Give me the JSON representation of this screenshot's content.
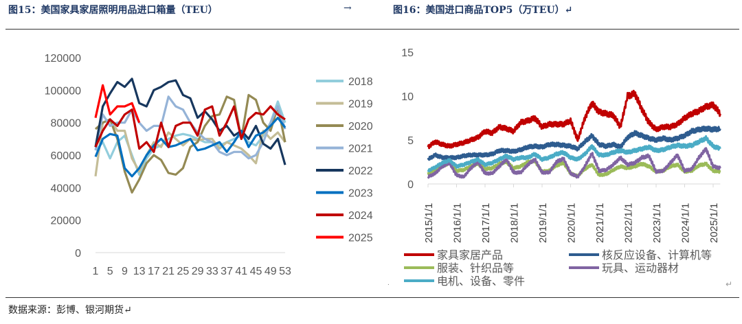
{
  "titles": {
    "left": "图15：美国家具家居照明用品进口箱量（TEU）",
    "arrow": "→",
    "right": "图16：美国进口商品TOP5（万TEU）↵"
  },
  "footer": "数据来源：彭博、银河期货↵",
  "marks": {
    "dot": ".",
    "return": "↵"
  },
  "chart_data": [
    {
      "type": "line",
      "title": "图15：美国家具家居照明用品进口箱量（TEU）",
      "xlabel": "",
      "ylabel": "",
      "ylim": [
        0,
        120000
      ],
      "yticks": [
        "0",
        "20000",
        "40000",
        "60000",
        "80000",
        "100000",
        "120000"
      ],
      "xticks": [
        "1",
        "5",
        "9",
        "13",
        "17",
        "21",
        "25",
        "29",
        "33",
        "37",
        "41",
        "45",
        "49",
        "53"
      ],
      "grid": false,
      "legend": "right",
      "x": [
        1,
        3,
        5,
        7,
        9,
        11,
        13,
        15,
        17,
        19,
        21,
        23,
        25,
        27,
        29,
        31,
        33,
        35,
        37,
        39,
        41,
        43,
        45,
        47,
        49,
        51,
        53
      ],
      "series": [
        {
          "name": "2018",
          "color": "#92cddc",
          "values": [
            63000,
            68000,
            58000,
            68000,
            72000,
            60000,
            48000,
            58000,
            64000,
            66000,
            70000,
            72000,
            73000,
            72000,
            70000,
            68000,
            68000,
            66000,
            68000,
            70000,
            72000,
            68000,
            66000,
            72000,
            80000,
            93000,
            80000
          ]
        },
        {
          "name": "2019",
          "color": "#c4bd97",
          "values": [
            47000,
            80000,
            82000,
            75000,
            75000,
            58000,
            50000,
            60000,
            68000,
            65000,
            74000,
            70000,
            66000,
            70000,
            69000,
            70000,
            70000,
            64000,
            68000,
            66000,
            64000,
            60000,
            55000,
            75000,
            70000,
            74000,
            68000
          ]
        },
        {
          "name": "2020",
          "color": "#948a54",
          "values": [
            76000,
            80000,
            82000,
            70000,
            50000,
            37000,
            45000,
            55000,
            60000,
            57000,
            49000,
            48000,
            52000,
            65000,
            68000,
            78000,
            84000,
            85000,
            96000,
            94000,
            70000,
            97000,
            94000,
            80000,
            75000,
            90000,
            68000
          ]
        },
        {
          "name": "2021",
          "color": "#95b3d7",
          "values": [
            63000,
            85000,
            78000,
            80000,
            80000,
            88000,
            80000,
            75000,
            78000,
            78000,
            96000,
            90000,
            88000,
            80000,
            74000,
            70000,
            68000,
            62000,
            60000,
            62000,
            62000,
            58000,
            60000,
            68000,
            80000,
            90000,
            76000
          ]
        },
        {
          "name": "2022",
          "color": "#17375e",
          "values": [
            65000,
            90000,
            98000,
            105000,
            102000,
            107000,
            92000,
            90000,
            100000,
            102000,
            105000,
            106000,
            97000,
            95000,
            83000,
            87000,
            82000,
            75000,
            78000,
            72000,
            75000,
            70000,
            78000,
            67000,
            64000,
            70000,
            54000
          ]
        },
        {
          "name": "2023",
          "color": "#0070c0",
          "values": [
            59000,
            70000,
            73000,
            72000,
            52000,
            47000,
            52000,
            60000,
            66000,
            70000,
            65000,
            66000,
            68000,
            70000,
            63000,
            64000,
            66000,
            68000,
            62000,
            68000,
            75000,
            65000,
            72000,
            74000,
            78000,
            83000,
            77000
          ]
        },
        {
          "name": "2024",
          "color": "#c00000",
          "values": [
            65000,
            75000,
            82000,
            78000,
            85000,
            88000,
            64000,
            68000,
            62000,
            80000,
            65000,
            78000,
            80000,
            80000,
            72000,
            88000,
            90000,
            72000,
            80000,
            90000,
            70000,
            82000,
            86000,
            85000,
            90000,
            85000,
            82000
          ]
        },
        {
          "name": "2025",
          "color": "#ff0000",
          "values": [
            83000,
            103000,
            85000,
            90000,
            90000,
            92000,
            80000,
            null,
            null,
            null,
            null,
            null,
            null,
            null,
            null,
            null,
            null,
            null,
            null,
            null,
            null,
            null,
            null,
            null,
            null,
            null,
            null
          ]
        }
      ]
    },
    {
      "type": "line",
      "title": "图16：美国进口商品TOP5（万TEU）",
      "xlabel": "",
      "ylabel": "",
      "ylim": [
        0,
        15
      ],
      "yticks": [
        "0",
        "5",
        "10",
        "15"
      ],
      "xticks": [
        "2015/1/1",
        "2016/1/1",
        "2017/1/1",
        "2018/1/1",
        "2019/1/1",
        "2020/1/1",
        "2021/1/1",
        "2022/1/1",
        "2023/1/1",
        "2024/1/1",
        "2025/1/1"
      ],
      "xrange": [
        "2015/1/1",
        "2025/4/1"
      ],
      "grid": false,
      "legend": "bottom",
      "x": [
        "2015/1",
        "2015/4",
        "2015/7",
        "2015/10",
        "2016/1",
        "2016/4",
        "2016/7",
        "2016/10",
        "2017/1",
        "2017/4",
        "2017/7",
        "2017/10",
        "2018/1",
        "2018/4",
        "2018/7",
        "2018/10",
        "2019/1",
        "2019/4",
        "2019/7",
        "2019/10",
        "2020/1",
        "2020/4",
        "2020/7",
        "2020/10",
        "2021/1",
        "2021/4",
        "2021/7",
        "2021/10",
        "2022/1",
        "2022/4",
        "2022/7",
        "2022/10",
        "2023/1",
        "2023/4",
        "2023/7",
        "2023/10",
        "2024/1",
        "2024/4",
        "2024/7",
        "2024/10",
        "2025/1",
        "2025/4"
      ],
      "series": [
        {
          "name": "家具家居产品",
          "color": "#c00000",
          "values": [
            4.2,
            4.8,
            4.5,
            4.3,
            4.5,
            4.7,
            5.0,
            5.3,
            6.0,
            5.8,
            6.5,
            6.3,
            6.0,
            7.0,
            7.2,
            7.5,
            6.5,
            6.8,
            6.8,
            6.8,
            7.2,
            5.0,
            7.5,
            9.2,
            8.2,
            8.0,
            7.8,
            6.5,
            10.0,
            10.3,
            8.5,
            7.0,
            6.2,
            6.5,
            6.5,
            6.8,
            7.5,
            8.0,
            8.3,
            8.8,
            9.0,
            8.0
          ]
        },
        {
          "name": "核反应设备、计算机等",
          "color": "#2e5c8f",
          "values": [
            2.8,
            3.3,
            3.0,
            3.0,
            3.0,
            3.2,
            3.3,
            3.3,
            3.3,
            3.4,
            3.8,
            3.8,
            3.7,
            3.9,
            4.2,
            4.3,
            4.2,
            4.5,
            4.5,
            4.4,
            4.3,
            4.0,
            4.8,
            5.5,
            4.5,
            4.3,
            4.5,
            4.2,
            5.3,
            5.8,
            5.5,
            5.2,
            5.0,
            5.2,
            5.0,
            5.2,
            5.5,
            6.0,
            6.2,
            6.3,
            6.2,
            6.3
          ]
        },
        {
          "name": "服装、针织品等",
          "color": "#9bbb59",
          "values": [
            1.2,
            1.6,
            2.0,
            2.4,
            1.5,
            1.6,
            2.0,
            2.3,
            1.7,
            1.8,
            2.3,
            2.5,
            1.8,
            2.0,
            2.5,
            2.6,
            1.4,
            1.5,
            2.1,
            2.4,
            1.2,
            0.9,
            1.7,
            2.2,
            1.0,
            1.1,
            1.6,
            2.0,
            1.8,
            2.0,
            2.3,
            2.0,
            1.4,
            1.5,
            2.0,
            2.2,
            1.4,
            1.5,
            2.1,
            2.3,
            1.5,
            1.4
          ]
        },
        {
          "name": "玩具、运动器材",
          "color": "#8064a2",
          "values": [
            0.8,
            1.2,
            2.0,
            2.4,
            1.0,
            0.8,
            1.8,
            2.5,
            1.2,
            1.2,
            2.0,
            2.8,
            1.3,
            1.3,
            2.2,
            2.8,
            1.3,
            1.3,
            2.5,
            2.9,
            1.2,
            0.8,
            2.0,
            3.5,
            1.5,
            1.6,
            2.2,
            3.0,
            2.2,
            2.4,
            3.0,
            3.2,
            1.4,
            1.5,
            2.4,
            3.3,
            1.5,
            1.7,
            3.0,
            4.0,
            2.0,
            1.8
          ]
        },
        {
          "name": "电机、设备、零件",
          "color": "#4bacc6",
          "values": [
            1.5,
            1.9,
            2.4,
            2.7,
            2.0,
            2.2,
            2.5,
            2.8,
            2.2,
            2.4,
            2.8,
            3.2,
            2.8,
            3.0,
            3.0,
            3.4,
            2.8,
            3.0,
            3.4,
            3.6,
            3.0,
            2.8,
            3.4,
            4.3,
            3.3,
            3.3,
            3.6,
            3.8,
            3.6,
            3.8,
            4.0,
            4.2,
            3.8,
            3.9,
            4.2,
            4.4,
            4.3,
            4.4,
            4.8,
            5.2,
            4.3,
            4.0
          ]
        }
      ]
    }
  ]
}
